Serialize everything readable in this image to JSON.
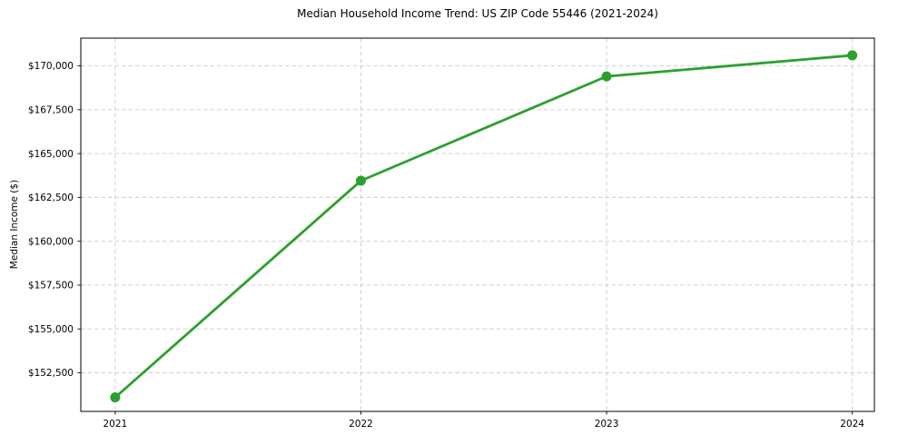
{
  "chart_data": {
    "type": "line",
    "title": "Median Household Income Trend: US ZIP Code 55446 (2021-2024)",
    "xlabel": "",
    "ylabel": "Median Income ($)",
    "x": [
      2021,
      2022,
      2023,
      2024
    ],
    "xtick_labels": [
      "2021",
      "2022",
      "2023",
      "2024"
    ],
    "series": [
      {
        "name": "Median Household Income",
        "values": [
          151100,
          163450,
          169400,
          170600
        ],
        "color": "#2ca02c",
        "marker": "circle"
      }
    ],
    "yticks": [
      152500,
      155000,
      157500,
      160000,
      162500,
      165000,
      167500,
      170000
    ],
    "ytick_labels": [
      "$152,500",
      "$155,000",
      "$157,500",
      "$160,000",
      "$162,500",
      "$165,000",
      "$167,500",
      "$170,000"
    ],
    "xlim": [
      2020.86,
      2024.09
    ],
    "ylim": [
      150300,
      171580
    ],
    "grid": true,
    "grid_style": "dashed",
    "legend_position": "none",
    "colors": {
      "line": "#2ca02c",
      "marker": "#2ca02c",
      "grid": "#cccccc",
      "spine": "#000000",
      "tick_text": "#000000",
      "background": "#ffffff"
    }
  }
}
